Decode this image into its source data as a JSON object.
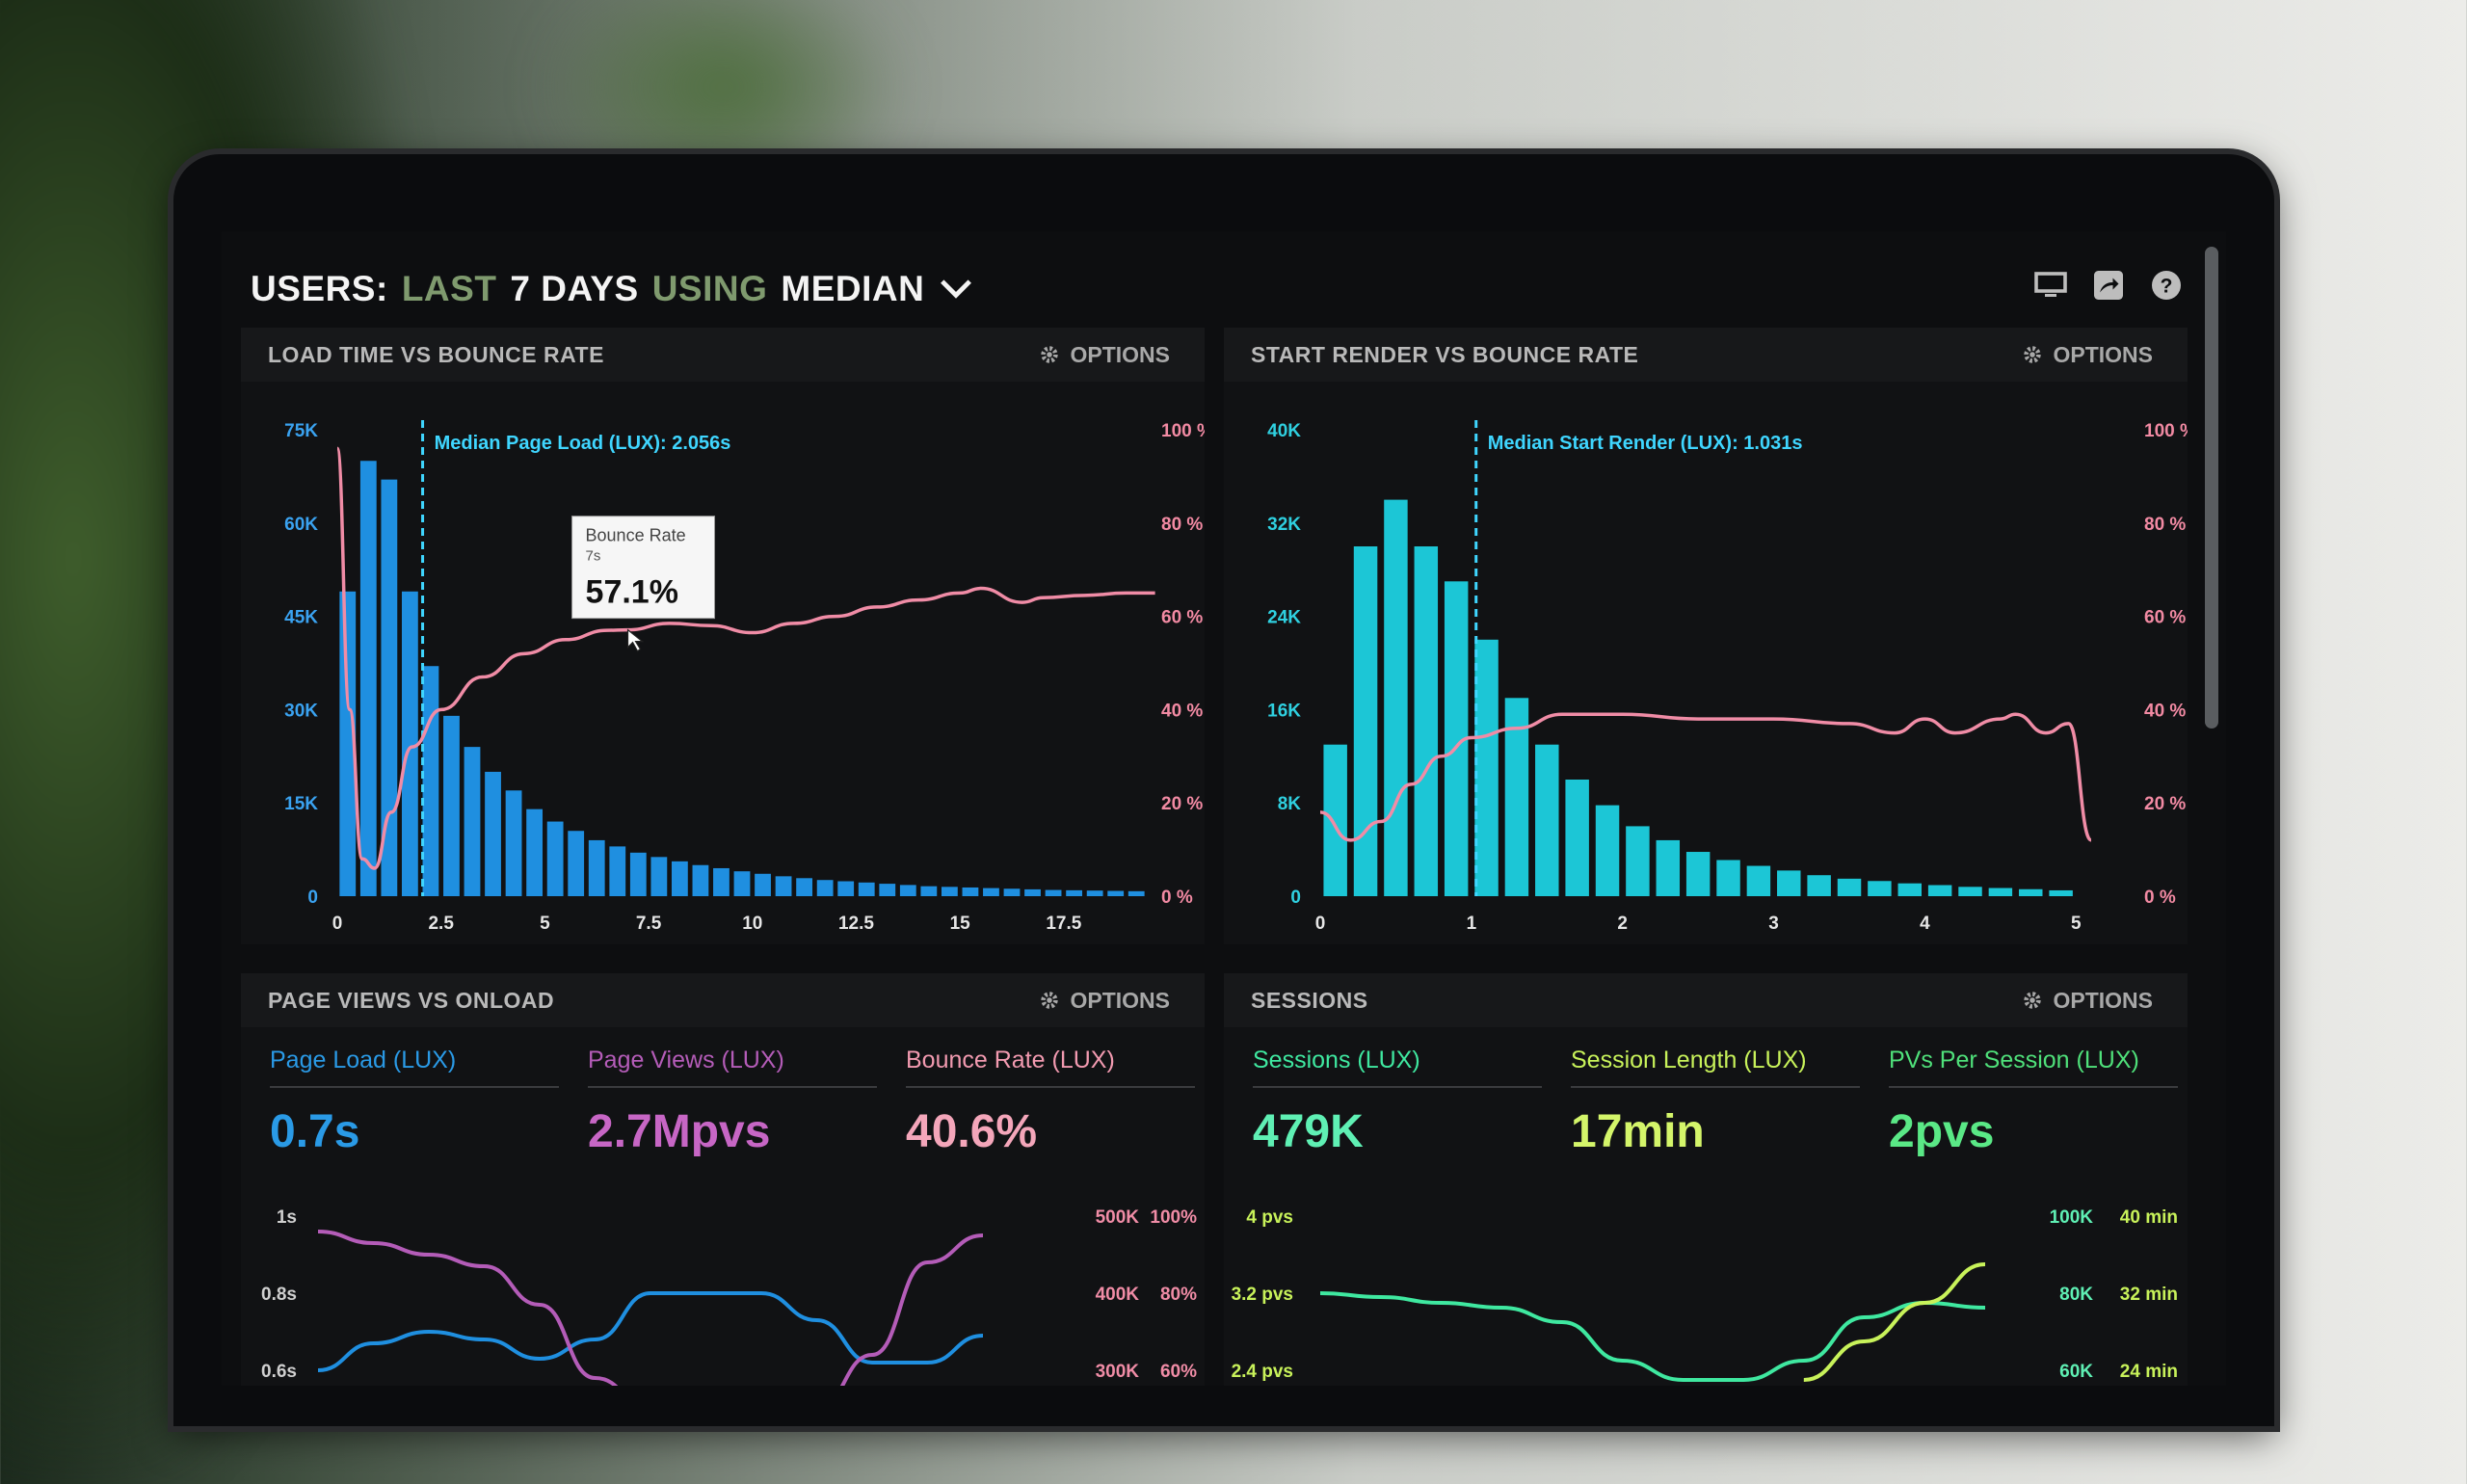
{
  "header": {
    "prefix": "USERS:",
    "range_word": "LAST",
    "range_num": "7 DAYS",
    "using": "USING",
    "stat": "MEDIAN"
  },
  "top_icons": [
    "monitor-icon",
    "share-icon",
    "help-icon"
  ],
  "options_label": "OPTIONS",
  "panels": {
    "load": {
      "title": "LOAD TIME VS BOUNCE RATE"
    },
    "render": {
      "title": "START RENDER VS BOUNCE RATE"
    },
    "pageviews": {
      "title": "PAGE VIEWS VS ONLOAD"
    },
    "sessions": {
      "title": "SESSIONS"
    }
  },
  "load_chart": {
    "median_label": "Median Page Load (LUX): 2.056s",
    "tooltip_title": "Bounce Rate",
    "tooltip_sub": "7s",
    "tooltip_value": "57.1%",
    "legend_1": "Page Load (LUX)",
    "legend_2": "Bounce Rate"
  },
  "render_chart": {
    "median_label": "Median Start Render (LUX): 1.031s",
    "legend_1": "Start Render (LUX)",
    "legend_2": "Bounce Rate"
  },
  "pageviews_metrics": [
    {
      "label": "Page Load (LUX)",
      "value": "0.7s"
    },
    {
      "label": "Page Views (LUX)",
      "value": "2.7Mpvs"
    },
    {
      "label": "Bounce Rate (LUX)",
      "value": "40.6%"
    }
  ],
  "sessions_metrics": [
    {
      "label": "Sessions (LUX)",
      "value": "479K"
    },
    {
      "label": "Session Length (LUX)",
      "value": "17min"
    },
    {
      "label": "PVs Per Session (LUX)",
      "value": "2pvs"
    }
  ],
  "colors": {
    "blue": "#1f8fe0",
    "cyan": "#1cc6d6",
    "pink": "#f08ca6",
    "purple": "#b45cb8",
    "green": "#3fe8a0",
    "lime": "#c8f25a"
  },
  "chart_data": [
    {
      "type": "bar",
      "title": "LOAD TIME VS BOUNCE RATE",
      "x": [
        0.25,
        0.75,
        1.25,
        1.75,
        2.25,
        2.75,
        3.25,
        3.75,
        4.25,
        4.75,
        5.25,
        5.75,
        6.25,
        6.75,
        7.25,
        7.75,
        8.25,
        8.75,
        9.25,
        9.75,
        10.25,
        10.75,
        11.25,
        11.75,
        12.25,
        12.75,
        13.25,
        13.75,
        14.25,
        14.75,
        15.25,
        15.75,
        16.25,
        16.75,
        17.25,
        17.75,
        18.25,
        18.75,
        19.25
      ],
      "series": [
        {
          "name": "Page Load (LUX)",
          "axis": "left",
          "values": [
            49000,
            70000,
            67000,
            49000,
            37000,
            29000,
            24000,
            20000,
            17000,
            14000,
            12000,
            10500,
            9000,
            8000,
            7000,
            6300,
            5600,
            5000,
            4500,
            4000,
            3600,
            3200,
            2900,
            2600,
            2400,
            2200,
            2000,
            1800,
            1600,
            1500,
            1400,
            1300,
            1200,
            1100,
            1000,
            950,
            900,
            850,
            800
          ]
        },
        {
          "name": "Bounce Rate",
          "axis": "right",
          "type": "line",
          "points": [
            [
              0,
              96
            ],
            [
              0.3,
              40
            ],
            [
              0.6,
              8
            ],
            [
              0.9,
              6
            ],
            [
              1.3,
              18
            ],
            [
              1.8,
              32
            ],
            [
              2.5,
              40
            ],
            [
              3.5,
              47
            ],
            [
              4.5,
              52
            ],
            [
              5.5,
              55
            ],
            [
              6.5,
              57
            ],
            [
              7,
              57.1
            ],
            [
              8,
              58.5
            ],
            [
              9,
              58
            ],
            [
              10,
              56.5
            ],
            [
              11,
              58.5
            ],
            [
              12,
              60
            ],
            [
              13,
              62
            ],
            [
              14,
              63.5
            ],
            [
              15,
              65
            ],
            [
              15.5,
              66
            ],
            [
              16.5,
              63
            ],
            [
              17,
              64
            ],
            [
              18,
              64.5
            ],
            [
              19,
              65
            ],
            [
              19.7,
              65
            ]
          ]
        }
      ],
      "xlim": [
        0,
        19.5
      ],
      "xticks": [
        "0",
        "2.5",
        "5",
        "7.5",
        "10",
        "12.5",
        "15",
        "17.5"
      ],
      "ylim_left": [
        0,
        75000
      ],
      "yticks_left": [
        "0",
        "15K",
        "30K",
        "45K",
        "60K",
        "75K"
      ],
      "ylim_right": [
        0,
        100
      ],
      "yticks_right": [
        "0 %",
        "20 %",
        "40 %",
        "60 %",
        "80 %",
        "100 %"
      ],
      "median_x": 2.056
    },
    {
      "type": "bar",
      "title": "START RENDER VS BOUNCE RATE",
      "x": [
        0.1,
        0.3,
        0.5,
        0.7,
        0.9,
        1.1,
        1.3,
        1.5,
        1.7,
        1.9,
        2.1,
        2.3,
        2.5,
        2.7,
        2.9,
        3.1,
        3.3,
        3.5,
        3.7,
        3.9,
        4.1,
        4.3,
        4.5,
        4.7,
        4.9
      ],
      "series": [
        {
          "name": "Start Render (LUX)",
          "axis": "left",
          "values": [
            13000,
            30000,
            34000,
            30000,
            27000,
            22000,
            17000,
            13000,
            10000,
            7800,
            6000,
            4800,
            3800,
            3100,
            2600,
            2200,
            1800,
            1500,
            1300,
            1100,
            950,
            800,
            700,
            600,
            500
          ]
        },
        {
          "name": "Bounce Rate",
          "axis": "right",
          "type": "line",
          "points": [
            [
              0,
              18
            ],
            [
              0.2,
              12
            ],
            [
              0.4,
              16
            ],
            [
              0.6,
              24
            ],
            [
              0.8,
              30
            ],
            [
              1,
              34
            ],
            [
              1.3,
              36
            ],
            [
              1.6,
              39
            ],
            [
              2,
              39
            ],
            [
              2.5,
              38
            ],
            [
              3,
              38
            ],
            [
              3.5,
              37
            ],
            [
              3.8,
              35
            ],
            [
              4,
              38
            ],
            [
              4.2,
              35
            ],
            [
              4.5,
              38
            ],
            [
              4.6,
              39
            ],
            [
              4.8,
              35
            ],
            [
              4.95,
              37
            ],
            [
              5.1,
              12
            ]
          ]
        }
      ],
      "xlim": [
        0,
        5.1
      ],
      "xticks": [
        "0",
        "1",
        "2",
        "3",
        "4",
        "5"
      ],
      "ylim_left": [
        0,
        40000
      ],
      "yticks_left": [
        "0",
        "8K",
        "16K",
        "24K",
        "32K",
        "40K"
      ],
      "ylim_right": [
        0,
        100
      ],
      "yticks_right": [
        "0 %",
        "20 %",
        "40 %",
        "60 %",
        "80 %",
        "100 %"
      ],
      "median_x": 1.031
    },
    {
      "type": "line",
      "title": "PAGE VIEWS VS ONLOAD",
      "yticks_left": [
        "0.6s",
        "0.8s",
        "1s"
      ],
      "yticks_mid": [
        "300K",
        "400K",
        "500K"
      ],
      "yticks_right": [
        "60%",
        "80%",
        "100%"
      ],
      "series": [
        {
          "name": "Page Load (LUX)",
          "values": [
            0.6,
            0.67,
            0.7,
            0.68,
            0.63,
            0.68,
            0.8,
            0.8,
            0.8,
            0.73,
            0.62,
            0.62,
            0.69
          ]
        },
        {
          "name": "Page Views (LUX)",
          "values": [
            0.96,
            0.93,
            0.9,
            0.87,
            0.77,
            0.58,
            0.5,
            0.5,
            0.5,
            0.5,
            0.64,
            0.88,
            0.95
          ]
        },
        {
          "name": "Bounce Rate (LUX)",
          "values": [
            null,
            null,
            null,
            null,
            null,
            null,
            null,
            null,
            null,
            null,
            null,
            null,
            null
          ]
        }
      ]
    },
    {
      "type": "line",
      "title": "SESSIONS",
      "yticks_left": [
        "2.4 pvs",
        "3.2 pvs",
        "4 pvs"
      ],
      "yticks_mid": [
        "60K",
        "80K",
        "100K"
      ],
      "yticks_right": [
        "24 min",
        "32 min",
        "40 min"
      ],
      "series": [
        {
          "name": "Sessions (LUX)",
          "values": [
            3.2,
            3.16,
            3.1,
            3.05,
            2.9,
            2.5,
            2.3,
            2.3,
            2.5,
            2.95,
            3.1,
            3.05
          ]
        },
        {
          "name": "PVs Per Session (LUX)",
          "values": [
            null,
            null,
            null,
            null,
            null,
            null,
            null,
            null,
            2.3,
            2.7,
            3.1,
            3.5
          ]
        }
      ]
    }
  ]
}
